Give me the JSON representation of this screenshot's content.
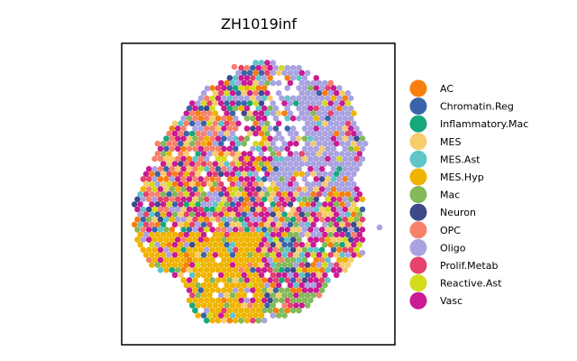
{
  "chart_data": {
    "type": "scatter",
    "title": "ZH1019inf",
    "xlabel": "",
    "ylabel": "",
    "grid": false,
    "legend_placement": "right",
    "categories": [
      "AC",
      "Chromatin.Reg",
      "Inflammatory.Mac",
      "MES",
      "MES.Ast",
      "MES.Hyp",
      "Mac",
      "Neuron",
      "OPC",
      "Oligo",
      "Prolif.Metab",
      "Reactive.Ast",
      "Vasc"
    ],
    "colors": {
      "AC": "#f77f0e",
      "Chromatin.Reg": "#3a64aa",
      "Inflammatory.Mac": "#17a77c",
      "MES": "#f6cd6c",
      "MES.Ast": "#5fc5c9",
      "MES.Hyp": "#f0b400",
      "Mac": "#82b95a",
      "Neuron": "#3f4a8b",
      "OPC": "#f7826c",
      "Oligo": "#aaa3e1",
      "Prolif.Metab": "#e5426d",
      "Reactive.Ast": "#d2dc1c",
      "Vasc": "#c91b93"
    }
  }
}
